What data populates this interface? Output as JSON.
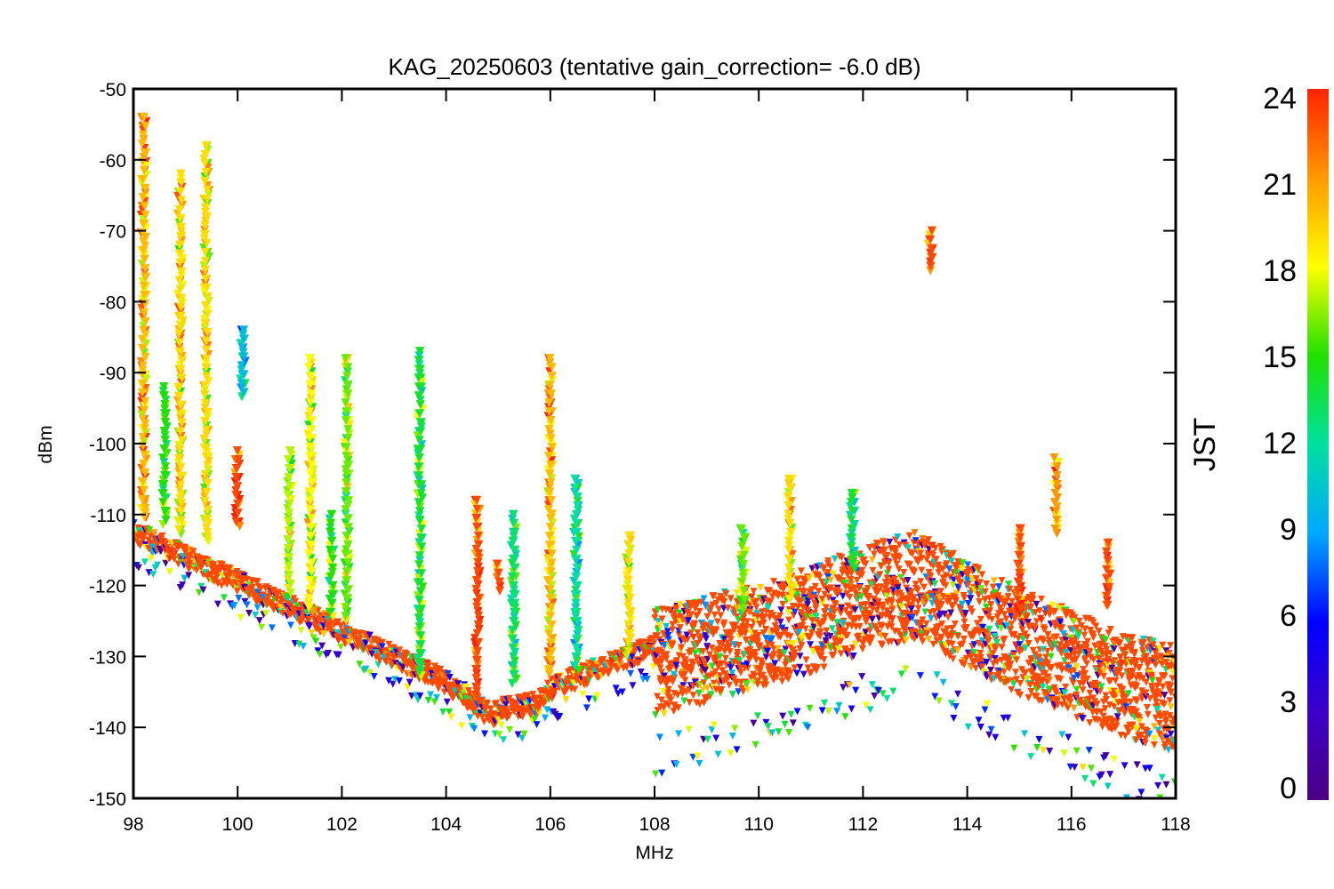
{
  "chart_data": {
    "type": "scatter",
    "title": "KAG_20250603 (tentative gain_correction= -6.0 dB)",
    "xlabel": "MHz",
    "ylabel": "dBm",
    "xlim": [
      98,
      118
    ],
    "ylim": [
      -150,
      -50
    ],
    "x_ticks": [
      "98",
      "100",
      "102",
      "104",
      "106",
      "108",
      "110",
      "112",
      "114",
      "116",
      "118"
    ],
    "y_ticks": [
      "-50",
      "-60",
      "-70",
      "-80",
      "-90",
      "-100",
      "-110",
      "-120",
      "-130",
      "-140",
      "-150"
    ],
    "marker": "down-triangle",
    "grid": false,
    "colorbar": {
      "label": "JST",
      "range": [
        0,
        24
      ],
      "ticks": [
        "0",
        "3",
        "6",
        "9",
        "12",
        "15",
        "18",
        "21",
        "24"
      ],
      "colormap": "rainbow",
      "position": "right"
    },
    "noise_floor": {
      "x": [
        98.0,
        100.0,
        102.0,
        104.0,
        104.9,
        105.0,
        105.8,
        106.0,
        108.0,
        109.0,
        110.0,
        111.0,
        112.0,
        113.0,
        114.0,
        115.0,
        116.0,
        117.0,
        118.0
      ],
      "y": [
        -112,
        -119,
        -126,
        -133,
        -138,
        -137,
        -136,
        -134,
        -128,
        -126,
        -124,
        -122,
        -119,
        -117,
        -121,
        -125,
        -128,
        -131,
        -133
      ],
      "spread_below_x108": 3,
      "spread_above_x108": 15
    },
    "signals": [
      {
        "x": 98.2,
        "y_top": -54,
        "y_bottom": -111,
        "jst": 20
      },
      {
        "x": 98.6,
        "y_top": -92,
        "y_bottom": -112,
        "jst": 15
      },
      {
        "x": 98.9,
        "y_top": -62,
        "y_bottom": -113,
        "jst": 19
      },
      {
        "x": 99.4,
        "y_top": -58,
        "y_bottom": -114,
        "jst": 19
      },
      {
        "x": 100.0,
        "y_top": -101,
        "y_bottom": -112,
        "jst": 23
      },
      {
        "x": 100.1,
        "y_top": -84,
        "y_bottom": -94,
        "jst": 10
      },
      {
        "x": 101.0,
        "y_top": -101,
        "y_bottom": -122,
        "jst": 17
      },
      {
        "x": 101.4,
        "y_top": -88,
        "y_bottom": -124,
        "jst": 18
      },
      {
        "x": 101.8,
        "y_top": -110,
        "y_bottom": -125,
        "jst": 15
      },
      {
        "x": 102.1,
        "y_top": -88,
        "y_bottom": -125,
        "jst": 16
      },
      {
        "x": 103.5,
        "y_top": -87,
        "y_bottom": -133,
        "jst": 14
      },
      {
        "x": 104.6,
        "y_top": -108,
        "y_bottom": -136,
        "jst": 23
      },
      {
        "x": 105.0,
        "y_top": -117,
        "y_bottom": -121,
        "jst": 23
      },
      {
        "x": 105.3,
        "y_top": -110,
        "y_bottom": -134,
        "jst": 13
      },
      {
        "x": 106.0,
        "y_top": -88,
        "y_bottom": -133,
        "jst": 20
      },
      {
        "x": 106.5,
        "y_top": -105,
        "y_bottom": -132,
        "jst": 12
      },
      {
        "x": 107.5,
        "y_top": -113,
        "y_bottom": -130,
        "jst": 19
      },
      {
        "x": 109.7,
        "y_top": -112,
        "y_bottom": -124,
        "jst": 16
      },
      {
        "x": 110.6,
        "y_top": -105,
        "y_bottom": -122,
        "jst": 19
      },
      {
        "x": 111.8,
        "y_top": -107,
        "y_bottom": -118,
        "jst": 14
      },
      {
        "x": 113.3,
        "y_top": -70,
        "y_bottom": -76,
        "jst": 23
      },
      {
        "x": 115.0,
        "y_top": -112,
        "y_bottom": -124,
        "jst": 23
      },
      {
        "x": 115.7,
        "y_top": -102,
        "y_bottom": -113,
        "jst": 21
      },
      {
        "x": 116.7,
        "y_top": -114,
        "y_bottom": -123,
        "jst": 23
      }
    ]
  }
}
